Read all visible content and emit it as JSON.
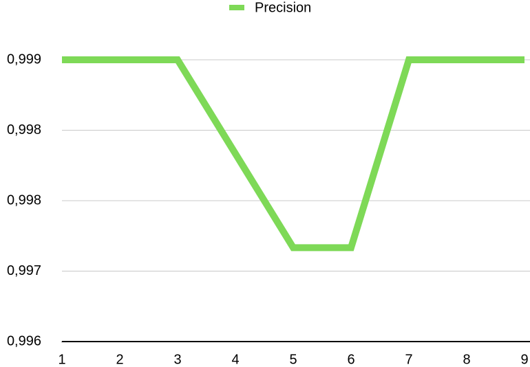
{
  "chart_data": {
    "type": "line",
    "x": [
      1,
      2,
      3,
      4,
      5,
      6,
      7,
      8,
      9
    ],
    "xlim": [
      1,
      9
    ],
    "xticks": [
      1,
      2,
      3,
      4,
      5,
      6,
      7,
      8,
      9
    ],
    "ylim": [
      0.996,
      0.999
    ],
    "yticks": [
      {
        "value": 0.996,
        "label": "0,996"
      },
      {
        "value": 0.99675,
        "label": "0,997"
      },
      {
        "value": 0.9975,
        "label": "0,998"
      },
      {
        "value": 0.99825,
        "label": "0,998"
      },
      {
        "value": 0.999,
        "label": "0,999"
      }
    ],
    "grid": true,
    "series": [
      {
        "name": "Precision",
        "color": "#7ed957",
        "values": [
          0.999,
          0.999,
          0.999,
          0.998,
          0.997,
          0.997,
          0.999,
          0.999,
          0.999
        ]
      }
    ]
  }
}
